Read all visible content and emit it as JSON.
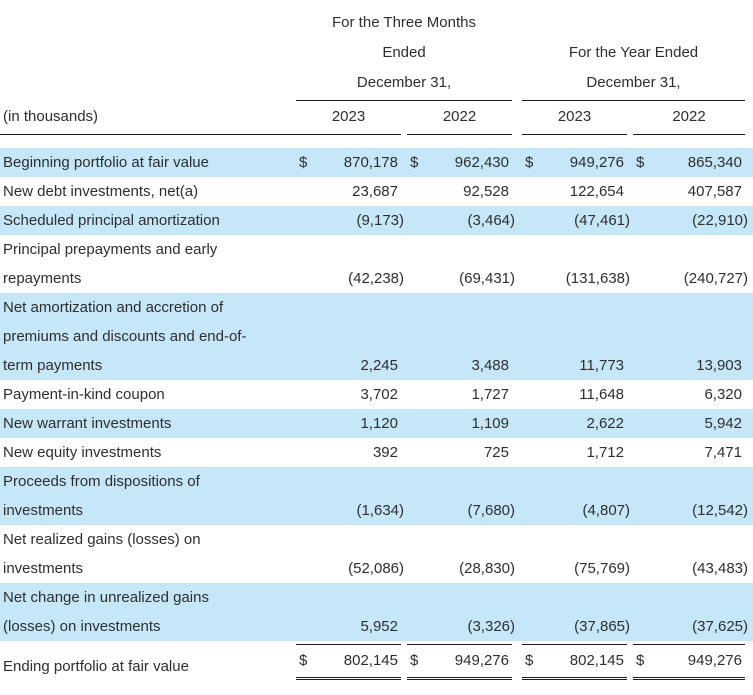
{
  "colors": {
    "row_shade": "#c6e7f8",
    "text": "#2e2e2e",
    "rule": "#1b1b1b"
  },
  "table": {
    "currency_symbol": "$",
    "header": {
      "group1_lines": [
        "For the Three Months",
        "Ended",
        "December 31,"
      ],
      "group2_lines": [
        "For the Year Ended",
        "December 31,"
      ],
      "corner_label": "(in thousands)",
      "years": [
        "2023",
        "2022",
        "2023",
        "2022"
      ]
    },
    "rows": [
      {
        "label_lines": [
          "Beginning portfolio at fair value"
        ],
        "shaded": true,
        "dollar": true,
        "values": [
          "870,178",
          "962,430",
          "949,276",
          "865,340"
        ]
      },
      {
        "label_lines": [
          "New debt investments, net(a)"
        ],
        "shaded": false,
        "dollar": false,
        "values": [
          "23,687",
          "92,528",
          "122,654",
          "407,587"
        ]
      },
      {
        "label_lines": [
          "Scheduled principal amortization"
        ],
        "shaded": true,
        "dollar": false,
        "values": [
          "(9,173)",
          "(3,464)",
          "(47,461)",
          "(22,910)"
        ]
      },
      {
        "label_lines": [
          "Principal prepayments and early",
          "repayments"
        ],
        "shaded": false,
        "dollar": false,
        "values": [
          "(42,238)",
          "(69,431)",
          "(131,638)",
          "(240,727)"
        ]
      },
      {
        "label_lines": [
          "Net amortization and accretion of",
          "premiums and discounts and end-of-",
          "term payments"
        ],
        "shaded": true,
        "dollar": false,
        "values": [
          "2,245",
          "3,488",
          "11,773",
          "13,903"
        ]
      },
      {
        "label_lines": [
          "Payment-in-kind coupon"
        ],
        "shaded": false,
        "dollar": false,
        "values": [
          "3,702",
          "1,727",
          "11,648",
          "6,320"
        ]
      },
      {
        "label_lines": [
          "New warrant investments"
        ],
        "shaded": true,
        "dollar": false,
        "values": [
          "1,120",
          "1,109",
          "2,622",
          "5,942"
        ]
      },
      {
        "label_lines": [
          "New equity investments"
        ],
        "shaded": false,
        "dollar": false,
        "values": [
          "392",
          "725",
          "1,712",
          "7,471"
        ]
      },
      {
        "label_lines": [
          "Proceeds from dispositions of",
          "investments"
        ],
        "shaded": true,
        "dollar": false,
        "values": [
          "(1,634)",
          "(7,680)",
          "(4,807)",
          "(12,542)"
        ]
      },
      {
        "label_lines": [
          "Net realized gains (losses) on",
          "investments"
        ],
        "shaded": false,
        "dollar": false,
        "values": [
          "(52,086)",
          "(28,830)",
          "(75,769)",
          "(43,483)"
        ]
      },
      {
        "label_lines": [
          "Net change in unrealized gains",
          "(losses) on investments"
        ],
        "shaded": true,
        "dollar": false,
        "values": [
          "5,952",
          "(3,326)",
          "(37,865)",
          "(37,625)"
        ]
      },
      {
        "label_lines": [
          "Ending portfolio at fair value"
        ],
        "shaded": false,
        "dollar": true,
        "values": [
          "802,145",
          "949,276",
          "802,145",
          "949,276"
        ],
        "total": true
      }
    ]
  }
}
